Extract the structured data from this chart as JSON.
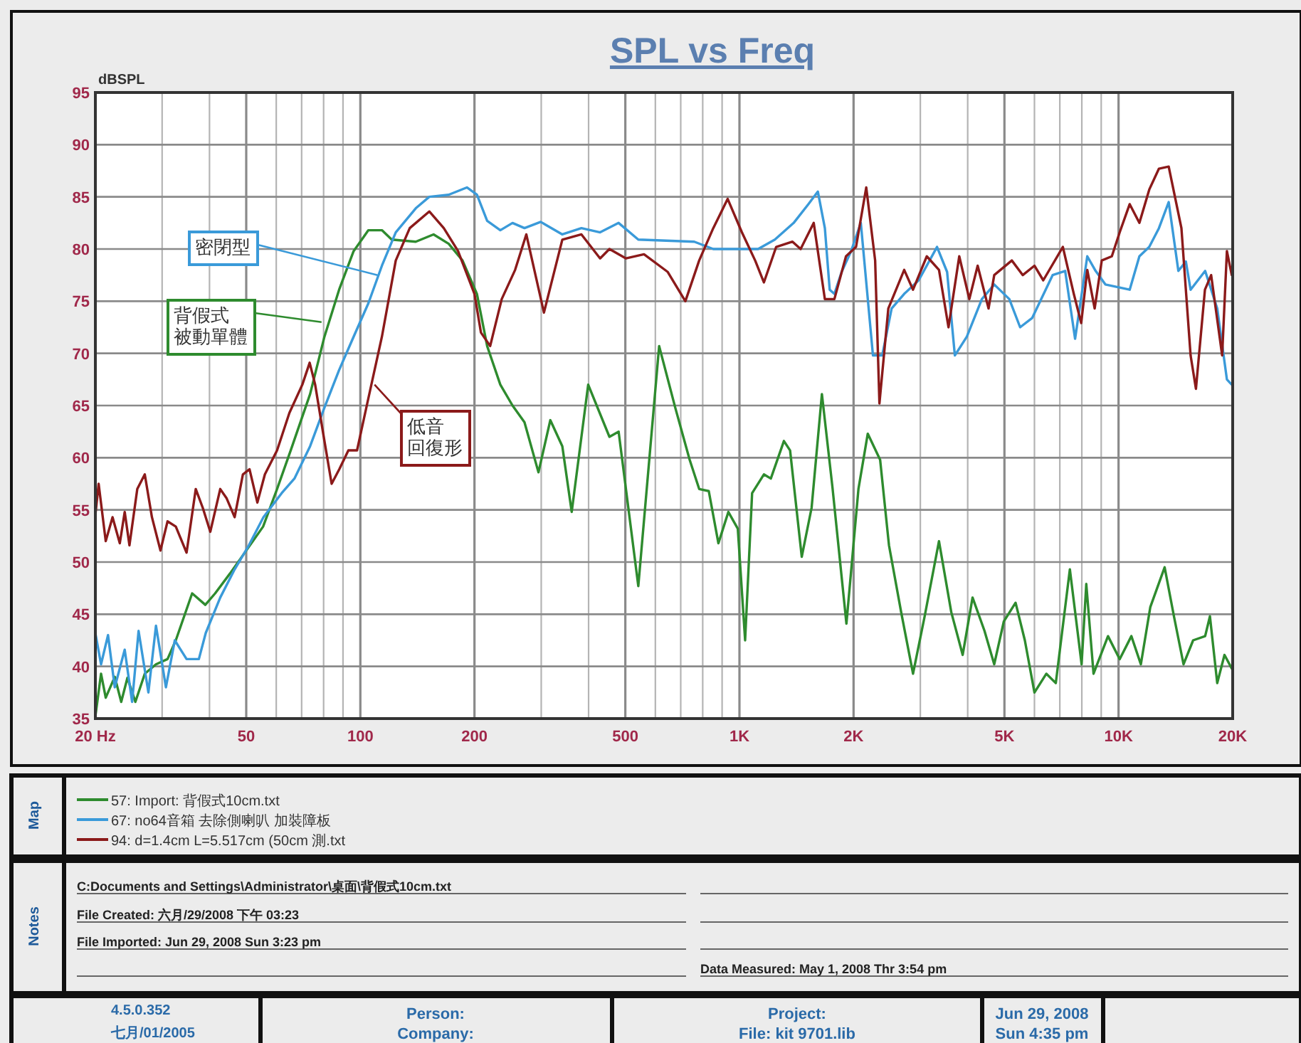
{
  "chart_data": {
    "type": "line",
    "title": "SPL vs Freq",
    "ylabel": "dBSPL",
    "log": "x",
    "grid": true,
    "legend": "bottom",
    "line_style": "solid",
    "marker": "none",
    "xlim": [
      20,
      20000
    ],
    "ylim": [
      35,
      95
    ],
    "xticks": [
      {
        "value": 20,
        "label": "20  Hz"
      },
      50,
      100,
      200,
      500,
      {
        "value": 1000,
        "label": "1K"
      },
      {
        "value": 2000,
        "label": "2K"
      },
      {
        "value": 5000,
        "label": "5K"
      },
      {
        "value": 10000,
        "label": "10K"
      },
      {
        "value": 20000,
        "label": "20K"
      }
    ],
    "yticks": [
      35,
      40,
      45,
      50,
      55,
      60,
      65,
      70,
      75,
      80,
      85,
      90,
      95
    ],
    "series": [
      {
        "name": "57: Import: 背假式10cm.txt",
        "color": "#2e8b2e",
        "x": [
          20,
          20.7,
          21.3,
          22.5,
          23.4,
          24.3,
          25.5,
          27,
          28.9,
          31,
          32.6,
          36,
          39,
          41.4,
          45.3,
          50,
          55.4,
          60.3,
          65.5,
          73.7,
          80.4,
          87.9,
          96,
          105,
          114,
          121,
          140,
          156,
          171,
          186,
          203,
          216,
          234,
          252,
          271,
          295,
          317,
          341,
          361,
          399,
          454,
          480,
          541,
          614,
          677,
          739,
          783,
          830,
          880,
          935,
          990,
          1035,
          1080,
          1160,
          1210,
          1310,
          1360,
          1460,
          1550,
          1650,
          1760,
          1915,
          2060,
          2180,
          2350,
          2480,
          2670,
          2870,
          3080,
          3360,
          3620,
          3880,
          4120,
          4430,
          4700,
          4980,
          5350,
          5660,
          6000,
          6450,
          6830,
          7440,
          7990,
          8220,
          8590,
          9380,
          10070,
          10810,
          11450,
          12130,
          13230,
          14000,
          14840,
          15730,
          16920,
          17420,
          18210,
          19030,
          19890
        ],
        "values": [
          35.2,
          39.3,
          37,
          39,
          36.6,
          38.9,
          36.6,
          39.3,
          40.2,
          40.7,
          42.5,
          47,
          45.9,
          47,
          48.9,
          51.1,
          53.4,
          57,
          60.7,
          66.1,
          71.6,
          76.1,
          79.8,
          81.8,
          81.8,
          80.9,
          80.7,
          81.4,
          80.5,
          78.9,
          75.7,
          70.7,
          67,
          65,
          63.4,
          58.6,
          63.6,
          61.1,
          54.8,
          67,
          62,
          62.5,
          47.7,
          70.7,
          64.8,
          59.8,
          57,
          56.8,
          51.8,
          54.8,
          53.2,
          42.5,
          56.6,
          58.4,
          58,
          61.6,
          60.7,
          50.5,
          55.2,
          66.1,
          57.1,
          44.1,
          57,
          62.3,
          59.8,
          51.6,
          45.2,
          39.3,
          44.8,
          52,
          45.2,
          41.1,
          46.6,
          43.4,
          40.2,
          44.3,
          46.1,
          42.5,
          37.5,
          39.3,
          38.4,
          49.3,
          40.2,
          47.9,
          39.3,
          42.9,
          40.7,
          42.9,
          40.2,
          45.7,
          49.5,
          44.8,
          40.2,
          42.5,
          42.9,
          44.8,
          38.4,
          41.1,
          39.8
        ]
      },
      {
        "name": "67: no64音箱 去除側喇叭 加裝障板",
        "color": "#3a9ad9",
        "x": [
          20,
          20.7,
          21.6,
          22.5,
          23.9,
          25,
          26,
          27.6,
          28.9,
          30.7,
          32.4,
          34.8,
          37.5,
          39.1,
          42.7,
          46.6,
          50.8,
          55.5,
          62,
          67,
          73.7,
          80.4,
          87.9,
          96,
          105,
          114,
          124,
          140,
          152,
          171,
          191,
          203,
          216,
          234,
          252,
          271,
          299,
          341,
          383,
          429,
          480,
          541,
          641,
          760,
          853,
          956,
          1120,
          1240,
          1390,
          1520,
          1610,
          1680,
          1730,
          1780,
          1860,
          1970,
          2090,
          2250,
          2380,
          2520,
          2720,
          2970,
          3320,
          3530,
          3700,
          3980,
          4360,
          4700,
          5150,
          5500,
          5920,
          6700,
          7230,
          7680,
          8270,
          8700,
          9230,
          10700,
          11350,
          12050,
          12780,
          13560,
          14380,
          15050,
          15490,
          16920,
          18210,
          19310,
          19890
        ],
        "values": [
          43.2,
          40.2,
          43,
          38,
          41.6,
          36.6,
          43.4,
          37.5,
          43.9,
          38,
          42.5,
          40.7,
          40.7,
          43.2,
          46.6,
          49.3,
          51.6,
          54.3,
          56.6,
          58,
          61.1,
          64.8,
          68.4,
          71.6,
          74.8,
          78.4,
          81.6,
          83.9,
          85,
          85.2,
          85.9,
          85.2,
          82.7,
          81.8,
          82.5,
          82,
          82.6,
          81.4,
          82,
          81.6,
          82.5,
          80.9,
          80.8,
          80.7,
          80,
          80,
          80,
          80.9,
          82.5,
          84.3,
          85.5,
          82,
          76.1,
          75.7,
          77.8,
          79.8,
          82.5,
          69.8,
          69.8,
          74.3,
          75.7,
          77,
          80.2,
          77.8,
          69.8,
          71.6,
          75.2,
          76.6,
          75.2,
          72.5,
          73.4,
          77.5,
          77.9,
          71.4,
          79.3,
          77.9,
          76.6,
          76.1,
          79.3,
          80.2,
          82,
          84.5,
          77.9,
          78.8,
          76.1,
          77.9,
          74.3,
          67.5,
          67
        ]
      },
      {
        "name": "94: d=1.4cm L=5.517cm (50cm 測.txt",
        "color": "#8b1a1a",
        "x": [
          20,
          20.4,
          21.3,
          22.2,
          23.2,
          23.9,
          24.6,
          25.8,
          27,
          28.2,
          29.7,
          31,
          32.6,
          34.8,
          36.8,
          38.4,
          40.2,
          42.7,
          44.4,
          46.6,
          49,
          51,
          53.5,
          56,
          60.3,
          65,
          70.3,
          73.5,
          76,
          80.4,
          84,
          88,
          93,
          98,
          105,
          114,
          124,
          135,
          152,
          166,
          181,
          200,
          208,
          220,
          236,
          256,
          274,
          305,
          341,
          383,
          429,
          454,
          502,
          560,
          647,
          720,
          783,
          853,
          931,
          1015,
          1100,
          1160,
          1250,
          1380,
          1450,
          1570,
          1680,
          1780,
          1910,
          2030,
          2160,
          2280,
          2340,
          2470,
          2720,
          2870,
          3120,
          3360,
          3560,
          3800,
          4040,
          4250,
          4540,
          4700,
          5230,
          5590,
          6000,
          6330,
          7130,
          7620,
          7970,
          8270,
          8650,
          9030,
          9600,
          10070,
          10700,
          11350,
          12050,
          12780,
          13560,
          14650,
          15490,
          16000,
          16900,
          17550,
          18760,
          19310,
          19890
        ],
        "values": [
          54.5,
          57.5,
          52,
          54.3,
          51.8,
          54.8,
          51.6,
          57,
          58.4,
          54.3,
          51.1,
          53.9,
          53.4,
          50.9,
          57,
          55.2,
          52.9,
          57,
          56.1,
          54.3,
          58.4,
          58.9,
          55.7,
          58.4,
          60.7,
          64.3,
          67,
          69.1,
          67,
          61.6,
          57.5,
          58.9,
          60.7,
          60.7,
          65.7,
          71.6,
          78.9,
          82,
          83.6,
          82,
          79.8,
          75.7,
          72,
          70.7,
          75.2,
          78,
          81.4,
          73.9,
          80.9,
          81.4,
          79.1,
          80,
          79.1,
          79.5,
          77.8,
          75,
          78.9,
          82,
          84.8,
          81.6,
          78.9,
          76.8,
          80.2,
          80.7,
          80,
          82.5,
          75.2,
          75.2,
          79.3,
          80.2,
          85.9,
          78.9,
          65.2,
          74.3,
          78,
          76.1,
          79.3,
          78,
          72.5,
          79.3,
          75.2,
          78.4,
          74.3,
          77.5,
          78.9,
          77.5,
          78.4,
          77,
          80.2,
          75.7,
          72.9,
          78,
          74.3,
          78.9,
          79.3,
          81.6,
          84.3,
          82.5,
          85.7,
          87.7,
          87.9,
          82,
          69.8,
          66.6,
          76.1,
          77.5,
          69.8,
          79.8,
          77.5
        ]
      }
    ],
    "annotations": [
      {
        "text": "密閉型",
        "x": 111,
        "y": 77.5
      },
      {
        "text": "背假式被動單體",
        "x": 79,
        "y": 73
      },
      {
        "text": "低音回復形",
        "x": 109,
        "y": 67
      },
      "Map",
      "Notes",
      "C:Documents and Settings\\Administrator\\桌面\\背假式10cm.txt",
      "File Created: 六月/29/2008 下午 03:23",
      "File Imported: Jun 29, 2008  Sun  3:23 pm",
      "Data Measured: May  1, 2008  Thr  3:54 pm",
      "4.5.0.352",
      "七月/01/2005",
      "Person:",
      "Company:",
      "Project:",
      "File: kit 9701.lib",
      "Jun 29, 2008",
      "Sun  4:35 pm"
    ]
  }
}
